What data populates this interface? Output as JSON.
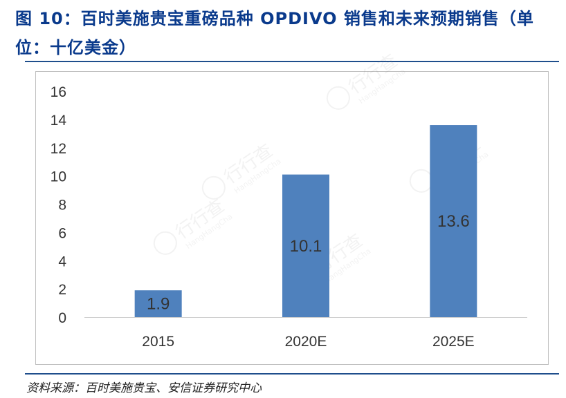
{
  "header": {
    "title": "图 10：百时美施贵宝重磅品种 OPDIVO 销售和未来预期销售（单位：十亿美金）"
  },
  "footer": {
    "source": "资料来源：百时美施贵宝、安信证券研究中心"
  },
  "watermark": {
    "text": "行行查",
    "subtext": "HangHangCha"
  },
  "colors": {
    "bar": "#4f81bd",
    "accent": "#0a3a8c"
  },
  "chart_data": {
    "type": "bar",
    "title": "",
    "categories": [
      "2015",
      "2020E",
      "2025E"
    ],
    "values": [
      1.9,
      10.1,
      13.6
    ],
    "data_labels": [
      "1.9",
      "10.1",
      "13.6"
    ],
    "xlabel": "",
    "ylabel": "",
    "ylim": [
      0,
      16
    ],
    "yticks": [
      "0",
      "2",
      "4",
      "6",
      "8",
      "10",
      "12",
      "14",
      "16"
    ],
    "grid": false,
    "legend": "none"
  }
}
